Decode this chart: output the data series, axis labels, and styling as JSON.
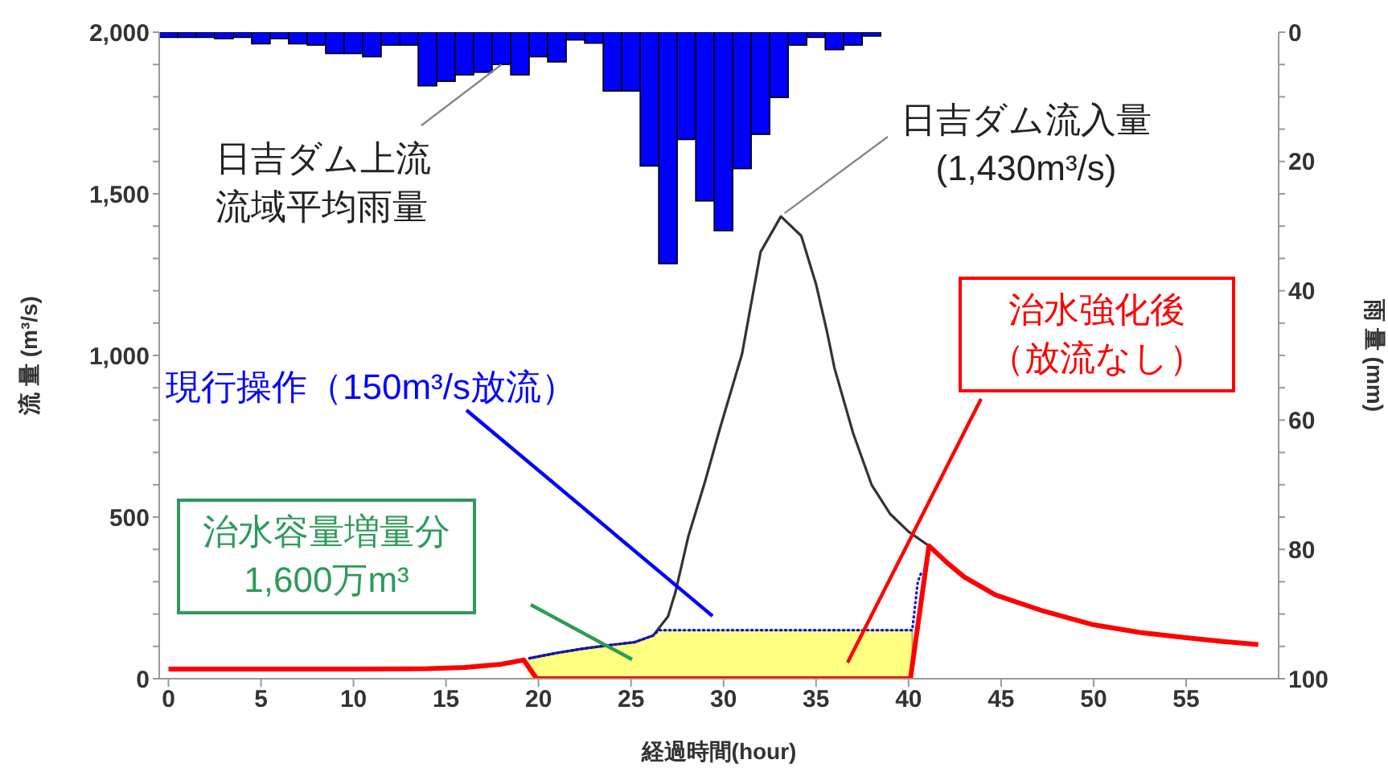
{
  "chart_data": {
    "type": "line",
    "xlabel": "経過時間(hour)",
    "ylabel": "流 量 (m³/s)",
    "y2label": "雨 量 (mm)",
    "xlim": [
      -0.5,
      60
    ],
    "xticks": [
      0,
      5,
      10,
      15,
      20,
      25,
      30,
      35,
      40,
      45,
      50,
      55
    ],
    "ylim": [
      0,
      2000
    ],
    "yticks": [
      {
        "value": 0,
        "label": "0"
      },
      {
        "value": 100,
        "label": null
      },
      {
        "value": 200,
        "label": null
      },
      {
        "value": 300,
        "label": null
      },
      {
        "value": 400,
        "label": null
      },
      {
        "value": 500,
        "label": "500"
      },
      {
        "value": 600,
        "label": null
      },
      {
        "value": 700,
        "label": null
      },
      {
        "value": 800,
        "label": null
      },
      {
        "value": 900,
        "label": null
      },
      {
        "value": 1000,
        "label": "1,000"
      },
      {
        "value": 1100,
        "label": null
      },
      {
        "value": 1200,
        "label": null
      },
      {
        "value": 1300,
        "label": null
      },
      {
        "value": 1400,
        "label": null
      },
      {
        "value": 1500,
        "label": "1,500"
      },
      {
        "value": 1600,
        "label": null
      },
      {
        "value": 1700,
        "label": null
      },
      {
        "value": 1800,
        "label": null
      },
      {
        "value": 1900,
        "label": null
      },
      {
        "value": 2000,
        "label": "2,000"
      }
    ],
    "y2lim": [
      100,
      0
    ],
    "y2ticks": [
      0,
      {
        "value": 5,
        "label": null
      },
      {
        "value": 10,
        "label": null
      },
      {
        "value": 15,
        "label": null
      },
      20,
      {
        "value": 25,
        "label": null
      },
      {
        "value": 30,
        "label": null
      },
      {
        "value": 35,
        "label": null
      },
      40,
      {
        "value": 45,
        "label": null
      },
      {
        "value": 50,
        "label": null
      },
      {
        "value": 55,
        "label": null
      },
      60,
      {
        "value": 65,
        "label": null
      },
      {
        "value": 70,
        "label": null
      },
      {
        "value": 75,
        "label": null
      },
      80,
      {
        "value": 85,
        "label": null
      },
      {
        "value": 90,
        "label": null
      },
      {
        "value": 95,
        "label": null
      },
      100
    ],
    "series": [
      {
        "type": "bar",
        "axis": "y2",
        "color": "#0000ff",
        "x": [
          0,
          1,
          2,
          3,
          4,
          5,
          6,
          7,
          8,
          9,
          10,
          11,
          12,
          13,
          14,
          15,
          16,
          17,
          18,
          19,
          20,
          21,
          22,
          23,
          24,
          25,
          26,
          27,
          28,
          29,
          30,
          31,
          32,
          33,
          34,
          35,
          36,
          37,
          38
        ],
        "values": [
          0.8,
          0.8,
          0.8,
          1,
          0.8,
          1.8,
          1,
          1.8,
          2,
          3.3,
          3.3,
          3.8,
          2,
          2,
          8.3,
          7.6,
          6.6,
          6.2,
          5,
          6.6,
          3.8,
          4.6,
          1.2,
          1.7,
          9.1,
          9.1,
          20.7,
          35.8,
          16.6,
          26.1,
          30.7,
          21.1,
          15.8,
          10.1,
          2,
          0.8,
          2.7,
          2,
          0.6
        ]
      },
      {
        "type": "area",
        "color": "#ffff80",
        "x": [
          19.5,
          21,
          22.4,
          24,
          25.2,
          26.2,
          26.5,
          40.2,
          40.2
        ],
        "values": [
          63,
          80,
          93,
          105,
          113,
          134,
          150,
          150,
          0
        ]
      },
      {
        "color": "#333333",
        "x": [
          19.5,
          21,
          22.4,
          24,
          25.2,
          26.2,
          27,
          27.4,
          28.1,
          29,
          29.8,
          31,
          32,
          33.1,
          34.2,
          35,
          35.6,
          36,
          37,
          38,
          39,
          40,
          41.1
        ],
        "values": [
          63,
          80,
          93,
          105,
          113,
          134,
          193,
          268,
          441,
          610,
          773,
          1005,
          1320,
          1430,
          1370,
          1220,
          1071,
          960,
          760,
          600,
          510,
          455,
          411
        ]
      },
      {
        "line_style": "dotted",
        "color": "#0000ff",
        "x": [
          19.5,
          21,
          22.4,
          24,
          25.2,
          26.2,
          26.5,
          40.2,
          40.5,
          40.7
        ],
        "values": [
          63,
          80,
          93,
          105,
          113,
          134,
          150,
          150,
          300,
          330
        ]
      },
      {
        "color": "#ff0000",
        "x": [
          0,
          5,
          10,
          14,
          16,
          18,
          19.2,
          19.9,
          40.1,
          41.1,
          42.1,
          43,
          44.7,
          47.3,
          49.9,
          52.5,
          55.1,
          57,
          58.9
        ],
        "values": [
          30,
          30,
          30,
          31,
          35,
          45,
          58,
          0,
          0,
          411,
          358,
          315,
          259,
          209,
          168,
          143,
          126,
          115,
          106
        ]
      }
    ],
    "annotations": [
      {
        "text": "日吉ダム上流流域平均雨量",
        "x": 18,
        "y": 1900
      },
      {
        "text": "日吉ダム流入量\n(1,430m³/s)",
        "x": 33.3,
        "y": 1440
      },
      "現行操作（150m³/s放流）",
      "治水強化後（放流なし）",
      "治水容量増量分\n1,600万m³"
    ]
  }
}
